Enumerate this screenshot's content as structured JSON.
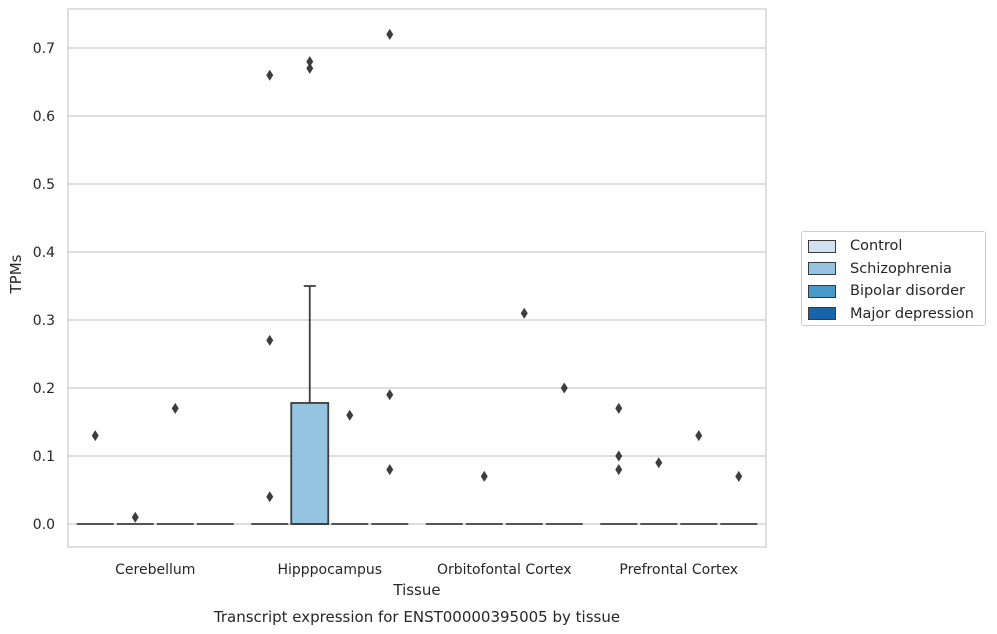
{
  "chart_data": {
    "type": "box",
    "title": "Transcript expression for ENST00000395005 by tissue",
    "xlabel": "Tissue",
    "ylabel": "TPMs",
    "ylim": [
      -0.035,
      0.758
    ],
    "yticks": [
      "0.0",
      "0.1",
      "0.2",
      "0.3",
      "0.4",
      "0.5",
      "0.6",
      "0.7"
    ],
    "grid": true,
    "legend_position": "right",
    "categories": [
      "Cerebellum",
      "Hipppocampus",
      "Orbitofontal Cortex",
      "Prefrontal Cortex"
    ],
    "series": [
      {
        "name": "Control",
        "color": "#d0e1f2"
      },
      {
        "name": "Schizophrenia",
        "color": "#94c4df"
      },
      {
        "name": "Bipolar disorder",
        "color": "#4a98c9"
      },
      {
        "name": "Major depression",
        "color": "#1764ab"
      }
    ],
    "boxes": [
      {
        "category": "Cerebellum",
        "series": "Control",
        "q1": 0,
        "median": 0,
        "q3": 0,
        "whisker_low": 0,
        "whisker_high": 0,
        "outliers": [
          0.13
        ]
      },
      {
        "category": "Cerebellum",
        "series": "Schizophrenia",
        "q1": 0,
        "median": 0,
        "q3": 0,
        "whisker_low": 0,
        "whisker_high": 0,
        "outliers": [
          0.01
        ]
      },
      {
        "category": "Cerebellum",
        "series": "Bipolar disorder",
        "q1": 0,
        "median": 0,
        "q3": 0,
        "whisker_low": 0,
        "whisker_high": 0,
        "outliers": [
          0.17
        ]
      },
      {
        "category": "Cerebellum",
        "series": "Major depression",
        "q1": 0,
        "median": 0,
        "q3": 0,
        "whisker_low": 0,
        "whisker_high": 0,
        "outliers": []
      },
      {
        "category": "Hipppocampus",
        "series": "Control",
        "q1": 0,
        "median": 0,
        "q3": 0,
        "whisker_low": 0,
        "whisker_high": 0,
        "outliers": [
          0.27,
          0.04,
          0.66
        ]
      },
      {
        "category": "Hipppocampus",
        "series": "Schizophrenia",
        "q1": 0,
        "median": 0,
        "q3": 0.178,
        "whisker_low": 0,
        "whisker_high": 0.35,
        "outliers": [
          0.67,
          0.68
        ]
      },
      {
        "category": "Hipppocampus",
        "series": "Bipolar disorder",
        "q1": 0,
        "median": 0,
        "q3": 0,
        "whisker_low": 0,
        "whisker_high": 0,
        "outliers": [
          0.16
        ]
      },
      {
        "category": "Hipppocampus",
        "series": "Major depression",
        "q1": 0,
        "median": 0,
        "q3": 0,
        "whisker_low": 0,
        "whisker_high": 0,
        "outliers": [
          0.72,
          0.19,
          0.08
        ]
      },
      {
        "category": "Orbitofontal Cortex",
        "series": "Control",
        "q1": 0,
        "median": 0,
        "q3": 0,
        "whisker_low": 0,
        "whisker_high": 0,
        "outliers": []
      },
      {
        "category": "Orbitofontal Cortex",
        "series": "Schizophrenia",
        "q1": 0,
        "median": 0,
        "q3": 0,
        "whisker_low": 0,
        "whisker_high": 0,
        "outliers": [
          0.07
        ]
      },
      {
        "category": "Orbitofontal Cortex",
        "series": "Bipolar disorder",
        "q1": 0,
        "median": 0,
        "q3": 0,
        "whisker_low": 0,
        "whisker_high": 0,
        "outliers": [
          0.31
        ]
      },
      {
        "category": "Orbitofontal Cortex",
        "series": "Major depression",
        "q1": 0,
        "median": 0,
        "q3": 0,
        "whisker_low": 0,
        "whisker_high": 0,
        "outliers": [
          0.2
        ]
      },
      {
        "category": "Prefrontal Cortex",
        "series": "Control",
        "q1": 0,
        "median": 0,
        "q3": 0,
        "whisker_low": 0,
        "whisker_high": 0,
        "outliers": [
          0.17,
          0.1,
          0.08
        ]
      },
      {
        "category": "Prefrontal Cortex",
        "series": "Schizophrenia",
        "q1": 0,
        "median": 0,
        "q3": 0,
        "whisker_low": 0,
        "whisker_high": 0,
        "outliers": [
          0.09
        ]
      },
      {
        "category": "Prefrontal Cortex",
        "series": "Bipolar disorder",
        "q1": 0,
        "median": 0,
        "q3": 0,
        "whisker_low": 0,
        "whisker_high": 0,
        "outliers": [
          0.13
        ]
      },
      {
        "category": "Prefrontal Cortex",
        "series": "Major depression",
        "q1": 0,
        "median": 0,
        "q3": 0,
        "whisker_low": 0,
        "whisker_high": 0,
        "outliers": [
          0.07
        ]
      }
    ]
  }
}
